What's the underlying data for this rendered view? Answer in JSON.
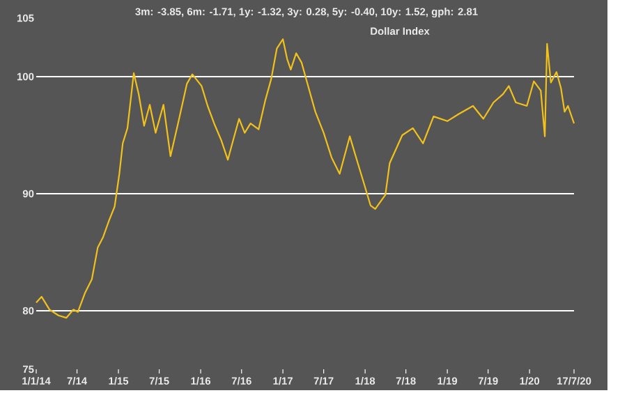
{
  "chart_data": {
    "type": "line",
    "title": "3m: -3.85, 6m: -1.71, 1y: -1.32, 3y: 0.28, 5y: -0.40, 10y: 1.52, gph: 2.81",
    "subtitle": "Dollar Index",
    "x": [
      "2014-01-01",
      "2014-01-25",
      "2014-03-01",
      "2014-04-10",
      "2014-05-15",
      "2014-06-15",
      "2014-07-05",
      "2014-08-05",
      "2014-09-05",
      "2014-10-01",
      "2014-10-25",
      "2014-11-20",
      "2014-12-15",
      "2015-01-05",
      "2015-01-20",
      "2015-02-10",
      "2015-03-10",
      "2015-04-01",
      "2015-04-25",
      "2015-05-20",
      "2015-06-15",
      "2015-07-20",
      "2015-08-20",
      "2015-09-25",
      "2015-11-01",
      "2015-11-25",
      "2016-01-05",
      "2016-02-01",
      "2016-03-01",
      "2016-04-01",
      "2016-05-01",
      "2016-05-25",
      "2016-06-20",
      "2016-07-15",
      "2016-08-10",
      "2016-09-15",
      "2016-10-15",
      "2016-11-10",
      "2016-12-05",
      "2017-01-01",
      "2017-01-20",
      "2017-02-05",
      "2017-03-01",
      "2017-03-25",
      "2017-04-20",
      "2017-05-25",
      "2017-07-01",
      "2017-08-05",
      "2017-09-10",
      "2017-10-25",
      "2017-11-25",
      "2017-12-25",
      "2018-01-25",
      "2018-02-15",
      "2018-04-01",
      "2018-04-20",
      "2018-06-15",
      "2018-08-01",
      "2018-09-15",
      "2018-11-01",
      "2019-01-01",
      "2019-02-20",
      "2019-04-25",
      "2019-06-10",
      "2019-07-25",
      "2019-09-05",
      "2019-10-01",
      "2019-11-01",
      "2019-12-20",
      "2020-01-20",
      "2020-02-20",
      "2020-03-09",
      "2020-03-19",
      "2020-04-05",
      "2020-04-30",
      "2020-05-20",
      "2020-06-05",
      "2020-06-20",
      "2020-07-17"
    ],
    "series": [
      {
        "color": "#f2c21b",
        "values": [
          80.7,
          81.2,
          80.1,
          79.6,
          79.4,
          80.1,
          79.9,
          81.5,
          82.7,
          85.4,
          86.3,
          87.7,
          88.9,
          91.7,
          94.3,
          95.6,
          100.3,
          98.5,
          95.8,
          97.6,
          95.2,
          97.6,
          93.2,
          96.2,
          99.4,
          100.2,
          99.2,
          97.5,
          96.0,
          94.6,
          92.9,
          94.6,
          96.4,
          95.2,
          96.0,
          95.5,
          98.0,
          99.8,
          102.4,
          103.2,
          101.5,
          100.6,
          102.0,
          101.2,
          99.4,
          97.0,
          95.2,
          93.1,
          91.7,
          94.9,
          92.9,
          91.0,
          89.0,
          88.7,
          89.9,
          92.6,
          95.0,
          95.6,
          94.3,
          96.6,
          96.2,
          96.8,
          97.5,
          96.4,
          97.8,
          98.5,
          99.2,
          97.8,
          97.5,
          99.6,
          98.8,
          94.9,
          102.8,
          99.5,
          100.4,
          99.0,
          97.0,
          97.5,
          96.0
        ]
      }
    ],
    "xlim": [
      "2014-01-01",
      "2020-07-17"
    ],
    "xticks": [
      {
        "value": "2014-01-01",
        "label": "1/1/14"
      },
      {
        "value": "2014-07-01",
        "label": "7/14"
      },
      {
        "value": "2015-01-01",
        "label": "1/15"
      },
      {
        "value": "2015-07-01",
        "label": "7/15"
      },
      {
        "value": "2016-01-01",
        "label": "1/16"
      },
      {
        "value": "2016-07-01",
        "label": "7/16"
      },
      {
        "value": "2017-01-01",
        "label": "1/17"
      },
      {
        "value": "2017-07-01",
        "label": "7/17"
      },
      {
        "value": "2018-01-01",
        "label": "1/18"
      },
      {
        "value": "2018-07-01",
        "label": "7/18"
      },
      {
        "value": "2019-01-01",
        "label": "1/19"
      },
      {
        "value": "2019-07-01",
        "label": "7/19"
      },
      {
        "value": "2020-01-01",
        "label": "1/20"
      },
      {
        "value": "2020-07-17",
        "label": "17/7/20"
      }
    ],
    "ylim": [
      75,
      105
    ],
    "yticks": [
      75,
      80,
      90,
      100,
      105
    ],
    "grid": "y"
  }
}
